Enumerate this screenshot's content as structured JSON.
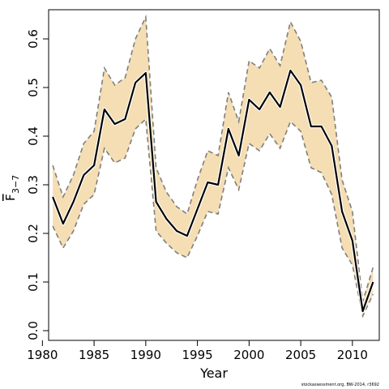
{
  "chart_data": {
    "type": "line",
    "xlabel": "Year",
    "ylabel_main": "F",
    "ylabel_sub": "3−7",
    "xlim": [
      1980.6,
      2012.6
    ],
    "ylim": [
      -0.02,
      0.66
    ],
    "xticks": [
      1980,
      1985,
      1990,
      1995,
      2000,
      2005,
      2010
    ],
    "yticks": [
      "0.0",
      "0.1",
      "0.2",
      "0.3",
      "0.4",
      "0.5",
      "0.6"
    ],
    "grid": false,
    "colors": {
      "band": "#f5deb3",
      "line": "#000000",
      "bound": "#7f7f7f"
    },
    "series": [
      {
        "years": [
          1981,
          1982,
          1983,
          1984,
          1985,
          1986,
          1987,
          1988,
          1989,
          1990,
          1991,
          1992,
          1993,
          1994,
          1995,
          1996,
          1997,
          1998,
          1999,
          2000,
          2001,
          2002,
          2003,
          2004,
          2005,
          2006,
          2007,
          2008,
          2009,
          2010,
          2011,
          2012
        ],
        "estimate": [
          0.275,
          0.22,
          0.265,
          0.32,
          0.34,
          0.455,
          0.425,
          0.435,
          0.51,
          0.53,
          0.265,
          0.23,
          0.205,
          0.195,
          0.25,
          0.305,
          0.3,
          0.415,
          0.36,
          0.475,
          0.455,
          0.49,
          0.46,
          0.535,
          0.505,
          0.42,
          0.42,
          0.38,
          0.245,
          0.185,
          0.04,
          0.1
        ],
        "upper": [
          0.34,
          0.275,
          0.32,
          0.385,
          0.41,
          0.54,
          0.505,
          0.52,
          0.6,
          0.645,
          0.335,
          0.285,
          0.255,
          0.24,
          0.31,
          0.37,
          0.36,
          0.49,
          0.43,
          0.555,
          0.54,
          0.58,
          0.545,
          0.635,
          0.595,
          0.51,
          0.515,
          0.48,
          0.31,
          0.245,
          0.06,
          0.13
        ],
        "lower": [
          0.215,
          0.17,
          0.205,
          0.26,
          0.28,
          0.375,
          0.345,
          0.355,
          0.415,
          0.435,
          0.205,
          0.18,
          0.16,
          0.15,
          0.195,
          0.245,
          0.24,
          0.335,
          0.29,
          0.385,
          0.37,
          0.405,
          0.375,
          0.43,
          0.41,
          0.335,
          0.325,
          0.28,
          0.17,
          0.135,
          0.03,
          0.075
        ]
      }
    ]
  },
  "footer": "stockassessment.org, BW-2014, r3692"
}
